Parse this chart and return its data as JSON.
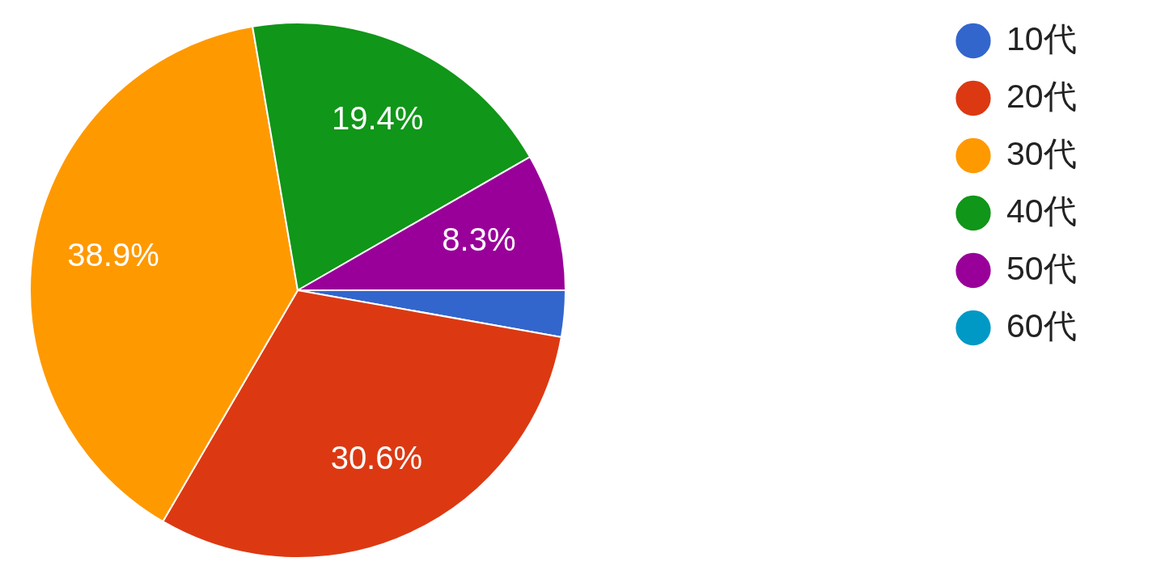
{
  "chart_data": {
    "type": "pie",
    "categories": [
      "10代",
      "20代",
      "30代",
      "40代",
      "50代",
      "60代"
    ],
    "values": [
      2.8,
      30.6,
      38.9,
      19.4,
      8.3,
      0
    ],
    "colors": [
      "#3366cc",
      "#dc3912",
      "#ff9900",
      "#109618",
      "#990099",
      "#0099c6"
    ],
    "value_labels": [
      null,
      "30.6%",
      "38.9%",
      "19.4%",
      "8.3%",
      null
    ],
    "legend": "top right"
  }
}
